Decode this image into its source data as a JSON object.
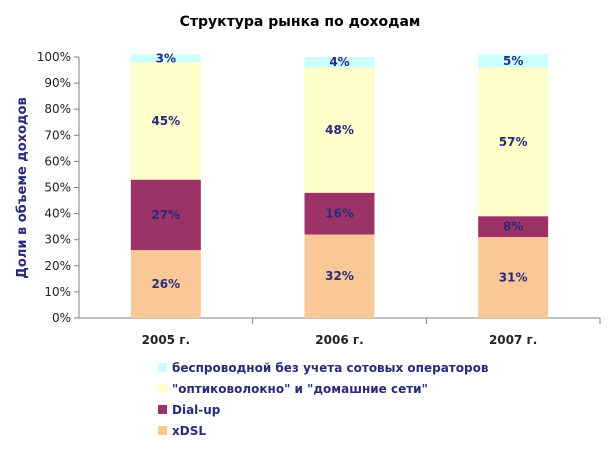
{
  "chart_data": {
    "type": "bar",
    "stacked": true,
    "title": "Структура рынка по доходам",
    "ylabel": "Доли в объеме доходов",
    "xlabel": "",
    "ylim": [
      0,
      100
    ],
    "yticks": [
      "0%",
      "10%",
      "20%",
      "30%",
      "40%",
      "50%",
      "60%",
      "70%",
      "80%",
      "90%",
      "100%"
    ],
    "categories": [
      "2005 г.",
      "2006 г.",
      "2007 г."
    ],
    "series": [
      {
        "name": "xDSL",
        "color": "#FAC896",
        "values": [
          26,
          32,
          31
        ],
        "labels": [
          "26%",
          "32%",
          "31%"
        ]
      },
      {
        "name": "Dial-up",
        "color": "#9C3366",
        "values": [
          27,
          16,
          8
        ],
        "labels": [
          "27%",
          "16%",
          "8%"
        ]
      },
      {
        "name": "\"оптиковолокно\" и \"домашние сети\"",
        "color": "#FFFFCC",
        "values": [
          45,
          48,
          57
        ],
        "labels": [
          "45%",
          "48%",
          "57%"
        ]
      },
      {
        "name": "беспроводной без учета сотовых операторов",
        "color": "#CCFFFF",
        "values": [
          3,
          4,
          5
        ],
        "labels": [
          "3%",
          "4%",
          "5%"
        ]
      }
    ],
    "legend_order": [
      3,
      2,
      1,
      0
    ],
    "legend_position": "bottom",
    "grid": false
  }
}
